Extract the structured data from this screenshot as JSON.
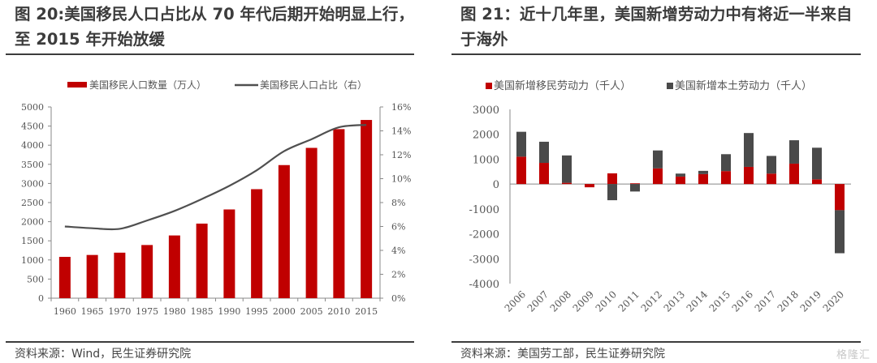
{
  "colors": {
    "immigrant_red": "#c00000",
    "dark_gray": "#4a4a4a",
    "line_gray": "#505050"
  },
  "watermark": "格隆汇",
  "chart_data": [
    {
      "type": "bar",
      "title": "图 20:美国移民人口占比从 70 年代后期开始明显上行，至 2015 年开始放缓",
      "source": "资料来源：Wind，民生证券研究院",
      "categories": [
        "1960",
        "1965",
        "1970",
        "1975",
        "1980",
        "1985",
        "1990",
        "1995",
        "2000",
        "2005",
        "2010",
        "2015"
      ],
      "series": [
        {
          "name": "美国移民人口数量（万人）",
          "kind": "bar",
          "axis": "left",
          "values": [
            1080,
            1130,
            1190,
            1390,
            1640,
            1950,
            2320,
            2850,
            3480,
            3930,
            4420,
            4660
          ]
        },
        {
          "name": "美国移民人口占比（右）",
          "kind": "line",
          "axis": "right",
          "values": [
            6.0,
            5.85,
            5.8,
            6.5,
            7.3,
            8.3,
            9.4,
            10.7,
            12.3,
            13.3,
            14.3,
            14.5
          ]
        }
      ],
      "ylim": [
        0,
        5000
      ],
      "yticks": [
        "0",
        "500",
        "1000",
        "1500",
        "2000",
        "2500",
        "3000",
        "3500",
        "4000",
        "4500",
        "5000"
      ],
      "y2lim": [
        0,
        16
      ],
      "y2ticks": [
        "0%",
        "2%",
        "4%",
        "6%",
        "8%",
        "10%",
        "12%",
        "14%",
        "16%"
      ],
      "legend": "top",
      "grid": false
    },
    {
      "type": "bar",
      "stacked": true,
      "title": "图 21：近十几年里，美国新增劳动力中有将近一半来自于海外",
      "source": "资料来源：美国劳工部，民生证券研究院",
      "categories": [
        "2006",
        "2007",
        "2008",
        "2009",
        "2010",
        "2011",
        "2012",
        "2013",
        "2014",
        "2015",
        "2016",
        "2017",
        "2018",
        "2019",
        "2020"
      ],
      "series": [
        {
          "name": "美国新增移民劳动力（千人）",
          "values": [
            1100,
            850,
            50,
            -130,
            430,
            30,
            630,
            300,
            400,
            520,
            690,
            420,
            820,
            190,
            -1050
          ]
        },
        {
          "name": "美国新增本土劳动力（千人）",
          "values": [
            1000,
            850,
            1100,
            0,
            -650,
            -300,
            720,
            120,
            130,
            680,
            1360,
            710,
            940,
            1270,
            -1730
          ]
        }
      ],
      "ylim": [
        -4000,
        3000
      ],
      "yticks": [
        "-4000",
        "-3000",
        "-2000",
        "-1000",
        "0",
        "1000",
        "2000",
        "3000"
      ],
      "legend": "top",
      "grid": false
    }
  ]
}
